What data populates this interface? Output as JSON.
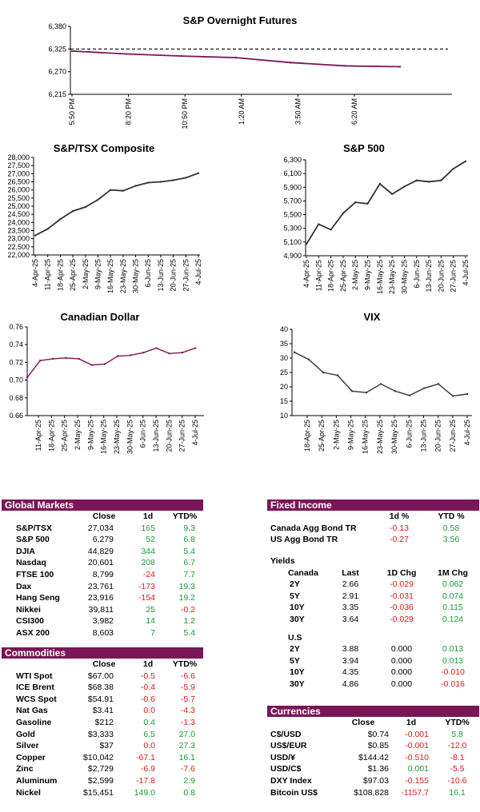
{
  "colors": {
    "accent": "#7a1657",
    "line": "#7a1657",
    "positive": "#1a9a3a",
    "negative": "#e01818"
  },
  "charts": {
    "overnight": {
      "title": "S&P Overnight Futures",
      "y_ticks": [
        "6,380",
        "6,325",
        "6,270",
        "6,215"
      ],
      "x_ticks": [
        "5:50 PM",
        "8:20 PM",
        "10:50 PM",
        "1:20 AM",
        "3:50 AM",
        "6:20 AM"
      ]
    },
    "tsx": {
      "title": "S&P/TSX Composite",
      "y_ticks": [
        "28,000",
        "27,500",
        "27,000",
        "26,500",
        "26,000",
        "25,500",
        "25,000",
        "24,500",
        "24,000",
        "23,500",
        "23,000",
        "22,500",
        "22,000"
      ],
      "x_ticks": [
        "4-Apr-25",
        "11-Apr-25",
        "18-Apr-25",
        "25-Apr-25",
        "2-May-25",
        "9-May-25",
        "16-May-25",
        "23-May-25",
        "30-May-25",
        "6-Jun-25",
        "13-Jun-25",
        "20-Jun-25",
        "27-Jun-25",
        "4-Jul-25"
      ]
    },
    "sp500": {
      "title": "S&P 500",
      "y_ticks": [
        "6,300",
        "6,100",
        "5,900",
        "5,700",
        "5,500",
        "5,300",
        "5,100",
        "4,900"
      ],
      "x_ticks": [
        "4-Apr-25",
        "11-Apr-25",
        "18-Apr-25",
        "25-Apr-25",
        "2-May-25",
        "9-May-25",
        "16-May-25",
        "23-May-25",
        "30-May-25",
        "6-Jun-25",
        "13-Jun-25",
        "20-Jun-25",
        "27-Jun-25",
        "4-Jul-25"
      ]
    },
    "cad": {
      "title": "Canadian Dollar",
      "y_ticks": [
        "0.76",
        "0.74",
        "0.72",
        "0.70",
        "0.68",
        "0.66"
      ],
      "x_ticks": [
        "11-Apr-25",
        "18-Apr-25",
        "25-Apr-25",
        "2-May-25",
        "9-May-25",
        "16-May-25",
        "23-May-25",
        "30-May-25",
        "6-Jun-25",
        "13-Jun-25",
        "20-Jun-25",
        "27-Jun-25",
        "4-Jul-25"
      ]
    },
    "vix": {
      "title": "VIX",
      "y_ticks": [
        "40",
        "35",
        "30",
        "25",
        "20",
        "15",
        "10"
      ],
      "x_ticks": [
        "18-Apr-25",
        "25-Apr-25",
        "2-May-25",
        "9-May-25",
        "16-May-25",
        "23-May-25",
        "30-May-25",
        "6-Jun-25",
        "13-Jun-25",
        "20-Jun-25",
        "27-Jun-25",
        "4-Jul-25"
      ]
    }
  },
  "chart_data": [
    {
      "type": "line",
      "title": "S&P Overnight Futures",
      "ylim": [
        6215,
        6380
      ],
      "reference_line": 6325,
      "x": [
        "5:50 PM",
        "8:20 PM",
        "10:50 PM",
        "1:20 AM",
        "3:50 AM",
        "6:20 AM",
        "7:40 AM"
      ],
      "y": [
        6320,
        6313,
        6308,
        6304,
        6292,
        6284,
        6282
      ]
    },
    {
      "type": "line",
      "title": "S&P/TSX Composite",
      "ylim": [
        22000,
        28000
      ],
      "x": [
        "4-Apr-25",
        "11-Apr-25",
        "18-Apr-25",
        "25-Apr-25",
        "2-May-25",
        "9-May-25",
        "16-May-25",
        "23-May-25",
        "30-May-25",
        "6-Jun-25",
        "13-Jun-25",
        "20-Jun-25",
        "27-Jun-25",
        "4-Jul-25"
      ],
      "y": [
        23200,
        23600,
        24200,
        24700,
        24950,
        25400,
        26000,
        25950,
        26250,
        26450,
        26500,
        26600,
        26750,
        27034
      ]
    },
    {
      "type": "line",
      "title": "S&P 500",
      "ylim": [
        4900,
        6300
      ],
      "x": [
        "4-Apr-25",
        "11-Apr-25",
        "18-Apr-25",
        "25-Apr-25",
        "2-May-25",
        "9-May-25",
        "16-May-25",
        "23-May-25",
        "30-May-25",
        "6-Jun-25",
        "13-Jun-25",
        "20-Jun-25",
        "27-Jun-25",
        "4-Jul-25"
      ],
      "y": [
        5070,
        5360,
        5280,
        5520,
        5680,
        5660,
        5950,
        5800,
        5910,
        6000,
        5980,
        6000,
        6170,
        6279
      ]
    },
    {
      "type": "line",
      "title": "Canadian Dollar",
      "ylim": [
        0.66,
        0.76
      ],
      "x": [
        "4-Apr-25",
        "11-Apr-25",
        "18-Apr-25",
        "25-Apr-25",
        "2-May-25",
        "9-May-25",
        "16-May-25",
        "23-May-25",
        "30-May-25",
        "6-Jun-25",
        "13-Jun-25",
        "20-Jun-25",
        "27-Jun-25",
        "4-Jul-25"
      ],
      "y": [
        0.703,
        0.722,
        0.724,
        0.725,
        0.724,
        0.717,
        0.718,
        0.727,
        0.728,
        0.731,
        0.736,
        0.73,
        0.731,
        0.736
      ]
    },
    {
      "type": "line",
      "title": "VIX",
      "ylim": [
        10,
        40
      ],
      "x": [
        "11-Apr-25",
        "18-Apr-25",
        "25-Apr-25",
        "2-May-25",
        "9-May-25",
        "16-May-25",
        "23-May-25",
        "30-May-25",
        "6-Jun-25",
        "13-Jun-25",
        "20-Jun-25",
        "27-Jun-25",
        "4-Jul-25"
      ],
      "y": [
        32.0,
        29.5,
        25.0,
        24.0,
        18.5,
        18.0,
        21.0,
        18.5,
        17.0,
        19.5,
        21.0,
        16.8,
        17.5
      ]
    }
  ],
  "global_markets": {
    "title": "Global Markets",
    "headers": [
      "Close",
      "1d",
      "YTD%"
    ],
    "rows": [
      {
        "name": "S&P/TSX",
        "close": "27,034",
        "d1": "165",
        "ytd": "9.3",
        "d1_sign": "pos",
        "ytd_sign": "pos"
      },
      {
        "name": "S&P 500",
        "close": "6,279",
        "d1": "52",
        "ytd": "6.8",
        "d1_sign": "pos",
        "ytd_sign": "pos"
      },
      {
        "name": "DJIA",
        "close": "44,829",
        "d1": "344",
        "ytd": "5.4",
        "d1_sign": "pos",
        "ytd_sign": "pos"
      },
      {
        "name": "Nasdaq",
        "close": "20,601",
        "d1": "208",
        "ytd": "6.7",
        "d1_sign": "pos",
        "ytd_sign": "pos"
      },
      {
        "name": "FTSE 100",
        "close": "8,799",
        "d1": "-24",
        "ytd": "7.7",
        "d1_sign": "neg",
        "ytd_sign": "pos"
      },
      {
        "name": "Dax",
        "close": "23,761",
        "d1": "-173",
        "ytd": "19.3",
        "d1_sign": "neg",
        "ytd_sign": "pos"
      },
      {
        "name": "Hang Seng",
        "close": "23,916",
        "d1": "-154",
        "ytd": "19.2",
        "d1_sign": "neg",
        "ytd_sign": "pos"
      },
      {
        "name": "Nikkei",
        "close": "39,811",
        "d1": "25",
        "ytd": "-0.2",
        "d1_sign": "pos",
        "ytd_sign": "neg"
      },
      {
        "name": "CSI300",
        "close": "3,982",
        "d1": "14",
        "ytd": "1.2",
        "d1_sign": "pos",
        "ytd_sign": "pos"
      },
      {
        "name": "ASX 200",
        "close": "8,603",
        "d1": "7",
        "ytd": "5.4",
        "d1_sign": "pos",
        "ytd_sign": "pos"
      }
    ]
  },
  "commodities": {
    "title": "Commodities",
    "headers": [
      "Close",
      "1d",
      "YTD%"
    ],
    "rows": [
      {
        "name": "WTI Spot",
        "close": "$67.00",
        "d1": "-0.5",
        "ytd": "-6.6",
        "d1_sign": "neg",
        "ytd_sign": "neg"
      },
      {
        "name": "ICE Brent",
        "close": "$68.38",
        "d1": "-0.4",
        "ytd": "-5.9",
        "d1_sign": "neg",
        "ytd_sign": "neg"
      },
      {
        "name": "WCS Spot",
        "close": "$54.91",
        "d1": "-0.6",
        "ytd": "-5.7",
        "d1_sign": "neg",
        "ytd_sign": "neg"
      },
      {
        "name": "Nat Gas",
        "close": "$3.41",
        "d1": "0.0",
        "ytd": "-4.3",
        "d1_sign": "neg",
        "ytd_sign": "neg"
      },
      {
        "name": "Gasoline",
        "close": "$212",
        "d1": "0.4",
        "ytd": "-1.3",
        "d1_sign": "pos",
        "ytd_sign": "neg"
      },
      {
        "name": "Gold",
        "close": "$3,333",
        "d1": "6.5",
        "ytd": "27.0",
        "d1_sign": "pos",
        "ytd_sign": "pos"
      },
      {
        "name": "Silver",
        "close": "$37",
        "d1": "0.0",
        "ytd": "27.3",
        "d1_sign": "neg",
        "ytd_sign": "pos"
      },
      {
        "name": "Copper",
        "close": "$10,042",
        "d1": "-67.1",
        "ytd": "16.1",
        "d1_sign": "neg",
        "ytd_sign": "pos"
      },
      {
        "name": "Zinc",
        "close": "$2,729",
        "d1": "-6.9",
        "ytd": "-7.6",
        "d1_sign": "neg",
        "ytd_sign": "neg"
      },
      {
        "name": "Aluminum",
        "close": "$2,599",
        "d1": "-17.8",
        "ytd": "2.9",
        "d1_sign": "neg",
        "ytd_sign": "pos"
      },
      {
        "name": "Nickel",
        "close": "$15,451",
        "d1": "149.0",
        "ytd": "0.8",
        "d1_sign": "pos",
        "ytd_sign": "pos"
      }
    ]
  },
  "fixed_income": {
    "title": "Fixed Income",
    "headers": [
      "1d %",
      "YTD %"
    ],
    "rows": [
      {
        "name": "Canada Agg Bond TR",
        "d1": "-0.13",
        "ytd": "0.58",
        "d1_sign": "neg",
        "ytd_sign": "pos"
      },
      {
        "name": "US Agg Bond TR",
        "d1": "-0.27",
        "ytd": "3.56",
        "d1_sign": "neg",
        "ytd_sign": "pos"
      }
    ]
  },
  "yields": {
    "label": "Yields",
    "headers": [
      "Canada",
      "Last",
      "1D Chg",
      "1M Chg"
    ],
    "canada": [
      {
        "term": "2Y",
        "last": "2.66",
        "d1": "-0.029",
        "m1": "0.062",
        "d1_sign": "neg",
        "m1_sign": "pos"
      },
      {
        "term": "5Y",
        "last": "2.91",
        "d1": "-0.031",
        "m1": "0.074",
        "d1_sign": "neg",
        "m1_sign": "pos"
      },
      {
        "term": "10Y",
        "last": "3.35",
        "d1": "-0.036",
        "m1": "0.115",
        "d1_sign": "neg",
        "m1_sign": "pos"
      },
      {
        "term": "30Y",
        "last": "3.64",
        "d1": "-0.029",
        "m1": "0.124",
        "d1_sign": "neg",
        "m1_sign": "pos"
      }
    ],
    "us_label": "U.S",
    "us": [
      {
        "term": "2Y",
        "last": "3.88",
        "d1": "0.000",
        "m1": "0.013",
        "d1_sign": "none",
        "m1_sign": "pos"
      },
      {
        "term": "5Y",
        "last": "3.94",
        "d1": "0.000",
        "m1": "0.013",
        "d1_sign": "none",
        "m1_sign": "pos"
      },
      {
        "term": "10Y",
        "last": "4.35",
        "d1": "0.000",
        "m1": "-0.010",
        "d1_sign": "none",
        "m1_sign": "neg"
      },
      {
        "term": "30Y",
        "last": "4.86",
        "d1": "0.000",
        "m1": "-0.016",
        "d1_sign": "none",
        "m1_sign": "neg"
      }
    ]
  },
  "currencies": {
    "title": "Currencies",
    "headers": [
      "Close",
      "1d",
      "YTD%"
    ],
    "rows": [
      {
        "name": "C$/USD",
        "close": "$0.74",
        "d1": "-0.001",
        "ytd": "5.8",
        "d1_sign": "neg",
        "ytd_sign": "pos"
      },
      {
        "name": "US$/EUR",
        "close": "$0.85",
        "d1": "-0.001",
        "ytd": "-12.0",
        "d1_sign": "neg",
        "ytd_sign": "neg"
      },
      {
        "name": "USD/¥",
        "close": "$144.42",
        "d1": "-0.510",
        "ytd": "-8.1",
        "d1_sign": "neg",
        "ytd_sign": "neg"
      },
      {
        "name": "USD/C$",
        "close": "$1.36",
        "d1": "0.001",
        "ytd": "-5.5",
        "d1_sign": "pos",
        "ytd_sign": "neg"
      },
      {
        "name": "DXY Index",
        "close": "$97.03",
        "d1": "-0.155",
        "ytd": "-10.6",
        "d1_sign": "neg",
        "ytd_sign": "neg"
      },
      {
        "name": "Bitcoin US$",
        "close": "$108,828",
        "d1": "-1157.7",
        "ytd": "16.1",
        "d1_sign": "neg",
        "ytd_sign": "pos"
      }
    ]
  }
}
